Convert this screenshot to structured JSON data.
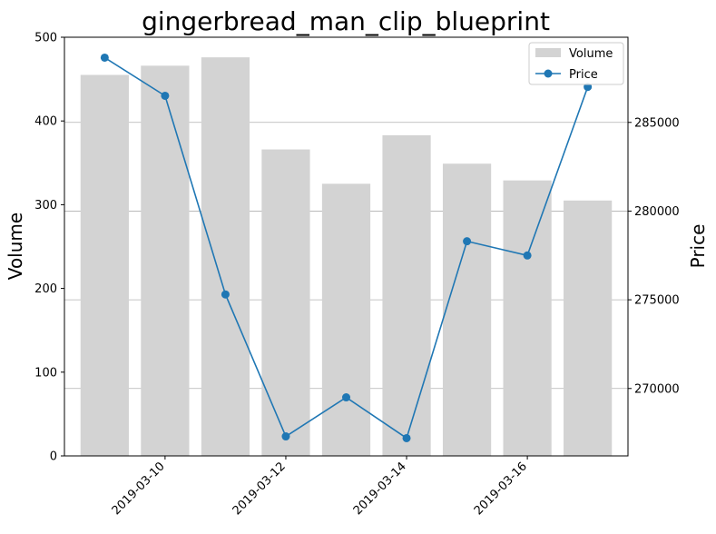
{
  "chart_data": {
    "type": "bar",
    "title": "gingerbread_man_clip_blueprint",
    "xlabel": "",
    "ylabel_left": "Volume",
    "ylabel_right": "Price",
    "x": [
      "2019-03-09",
      "2019-03-10",
      "2019-03-11",
      "2019-03-12",
      "2019-03-13",
      "2019-03-14",
      "2019-03-15",
      "2019-03-16",
      "2019-03-17"
    ],
    "x_tick_labels": [
      "2019-03-10",
      "2019-03-12",
      "2019-03-14",
      "2019-03-16"
    ],
    "series": [
      {
        "name": "Volume",
        "type": "bar",
        "axis": "left",
        "color": "#d3d3d3",
        "values": [
          455,
          466,
          476,
          366,
          325,
          383,
          349,
          329,
          305
        ]
      },
      {
        "name": "Price",
        "type": "line",
        "axis": "right",
        "color": "#1f77b4",
        "values": [
          288650,
          286500,
          275300,
          267300,
          269500,
          267200,
          278300,
          277500,
          287000
        ]
      }
    ],
    "ylim_left": [
      0,
      500
    ],
    "yticks_left": [
      0,
      100,
      200,
      300,
      400,
      500
    ],
    "ylim_right": [
      266200,
      289800
    ],
    "yticks_right": [
      270000,
      275000,
      280000,
      285000
    ],
    "xlim": [
      "2019-03-08T08:00",
      "2019-03-17T16:00"
    ],
    "grid": "right-axis horizontal lines",
    "legend": {
      "placement": "top-right",
      "entries": [
        "Volume",
        "Price"
      ]
    }
  }
}
